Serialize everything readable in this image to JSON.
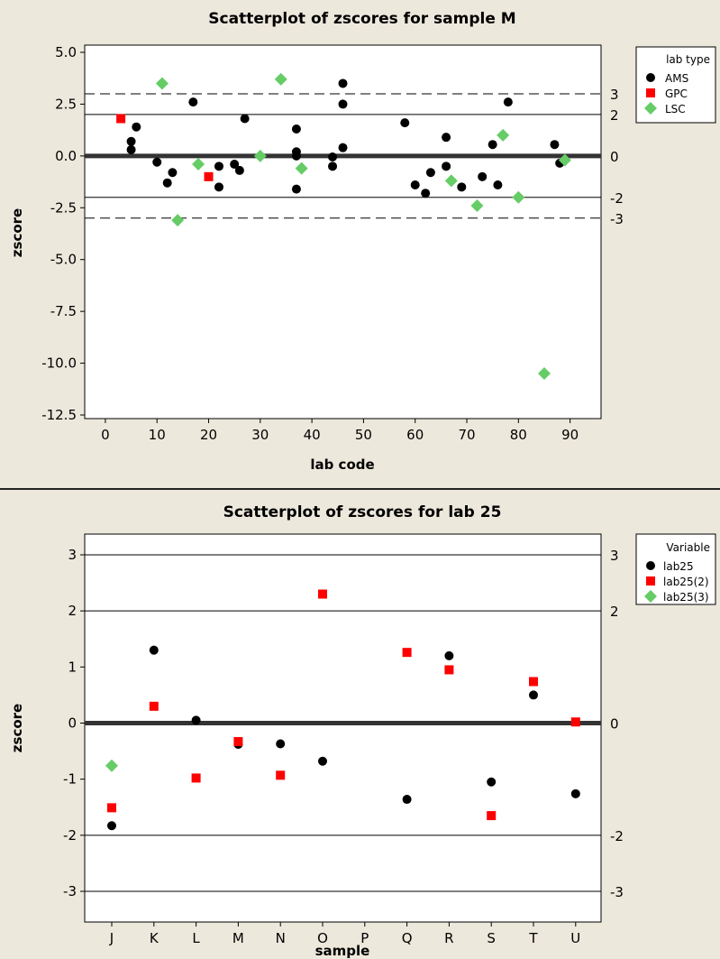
{
  "chart_data": [
    {
      "type": "scatter",
      "title": "Scatterplot of zscores for sample M",
      "xlabel": "lab code",
      "ylabel": "zscore",
      "xlim": [
        -4,
        96
      ],
      "ylim": [
        -12.5,
        5.0
      ],
      "x_ticks": [
        0,
        10,
        20,
        30,
        40,
        50,
        60,
        70,
        80,
        90
      ],
      "y_ticks": [
        5.0,
        2.5,
        0.0,
        -2.5,
        -5.0,
        -7.5,
        -10.0,
        -12.5
      ],
      "y_tick_labels": [
        "5.0",
        "2.5",
        "0.0",
        "-2.5",
        "-5.0",
        "-7.5",
        "-10.0",
        "-12.5"
      ],
      "reference_lines": [
        {
          "y": 3,
          "label": "3",
          "style": "dashed"
        },
        {
          "y": 2,
          "label": "2",
          "style": "solid"
        },
        {
          "y": 0,
          "label": "0",
          "style": "thick"
        },
        {
          "y": -2,
          "label": "-2",
          "style": "solid"
        },
        {
          "y": -3,
          "label": "-3",
          "style": "dashed"
        }
      ],
      "legend": {
        "title": "lab type",
        "position": "right"
      },
      "grid": false,
      "series": [
        {
          "name": "AMS",
          "marker": "circle",
          "color": "#000000",
          "points": [
            [
              5,
              0.7
            ],
            [
              5,
              0.3
            ],
            [
              6,
              1.4
            ],
            [
              10,
              -0.3
            ],
            [
              12,
              -1.3
            ],
            [
              13,
              -0.8
            ],
            [
              17,
              2.6
            ],
            [
              22,
              -0.5
            ],
            [
              22,
              -1.5
            ],
            [
              25,
              -0.4
            ],
            [
              26,
              -0.7
            ],
            [
              27,
              1.8
            ],
            [
              37,
              1.3
            ],
            [
              37,
              0.2
            ],
            [
              37,
              0.0
            ],
            [
              37,
              -1.6
            ],
            [
              44,
              -0.05
            ],
            [
              44,
              -0.5
            ],
            [
              46,
              3.5
            ],
            [
              46,
              2.5
            ],
            [
              46,
              0.4
            ],
            [
              58,
              1.6
            ],
            [
              60,
              -1.4
            ],
            [
              62,
              -1.8
            ],
            [
              63,
              -0.8
            ],
            [
              66,
              0.9
            ],
            [
              66,
              -0.5
            ],
            [
              69,
              -1.5
            ],
            [
              73,
              -1.0
            ],
            [
              75,
              0.55
            ],
            [
              76,
              -1.4
            ],
            [
              78,
              2.6
            ],
            [
              87,
              0.55
            ],
            [
              88,
              -0.35
            ]
          ]
        },
        {
          "name": "GPC",
          "marker": "square",
          "color": "#ff0000",
          "points": [
            [
              3,
              1.8
            ],
            [
              20,
              -1.0
            ]
          ]
        },
        {
          "name": "LSC",
          "marker": "diamond",
          "color": "#66cc66",
          "points": [
            [
              11,
              3.5
            ],
            [
              14,
              -3.1
            ],
            [
              18,
              -0.4
            ],
            [
              30,
              0.0
            ],
            [
              34,
              3.7
            ],
            [
              38,
              -0.6
            ],
            [
              67,
              -1.2
            ],
            [
              72,
              -2.4
            ],
            [
              77,
              1.0
            ],
            [
              80,
              -2.0
            ],
            [
              85,
              -10.5
            ],
            [
              89,
              -0.2
            ]
          ]
        }
      ]
    },
    {
      "type": "scatter",
      "title": "Scatterplot of zscores for lab 25",
      "xlabel": "sample",
      "ylabel": "zscore",
      "categories": [
        "J",
        "K",
        "L",
        "M",
        "N",
        "O",
        "P",
        "Q",
        "R",
        "S",
        "T",
        "U"
      ],
      "ylim": [
        -3.4,
        3.3
      ],
      "y_ticks": [
        3,
        2,
        1,
        0,
        -1,
        -2,
        -3
      ],
      "y_tick_labels": [
        "3",
        "2",
        "1",
        "0",
        "-1",
        "-2",
        "-3"
      ],
      "reference_lines": [
        {
          "y": 3,
          "label": "3",
          "style": "solid"
        },
        {
          "y": 2,
          "label": "2",
          "style": "solid"
        },
        {
          "y": 0,
          "label": "0",
          "style": "thick"
        },
        {
          "y": -2,
          "label": "-2",
          "style": "solid"
        },
        {
          "y": -3,
          "label": "-3",
          "style": "solid"
        }
      ],
      "legend": {
        "title": "Variable",
        "position": "right"
      },
      "grid": false,
      "series": [
        {
          "name": "lab25",
          "marker": "circle",
          "color": "#000000",
          "values": [
            -1.83,
            1.3,
            0.05,
            -0.38,
            -0.37,
            -0.68,
            null,
            -1.36,
            1.2,
            -1.05,
            0.5,
            -1.26
          ]
        },
        {
          "name": "lab25(2)",
          "marker": "square",
          "color": "#ff0000",
          "values": [
            -1.51,
            0.3,
            -0.98,
            -0.33,
            -0.93,
            2.3,
            null,
            1.26,
            0.95,
            -1.65,
            0.74,
            0.02
          ]
        },
        {
          "name": "lab25(3)",
          "marker": "diamond",
          "color": "#66cc66",
          "values": [
            -0.76,
            null,
            null,
            null,
            null,
            null,
            null,
            null,
            null,
            null,
            null,
            null
          ]
        }
      ]
    }
  ]
}
